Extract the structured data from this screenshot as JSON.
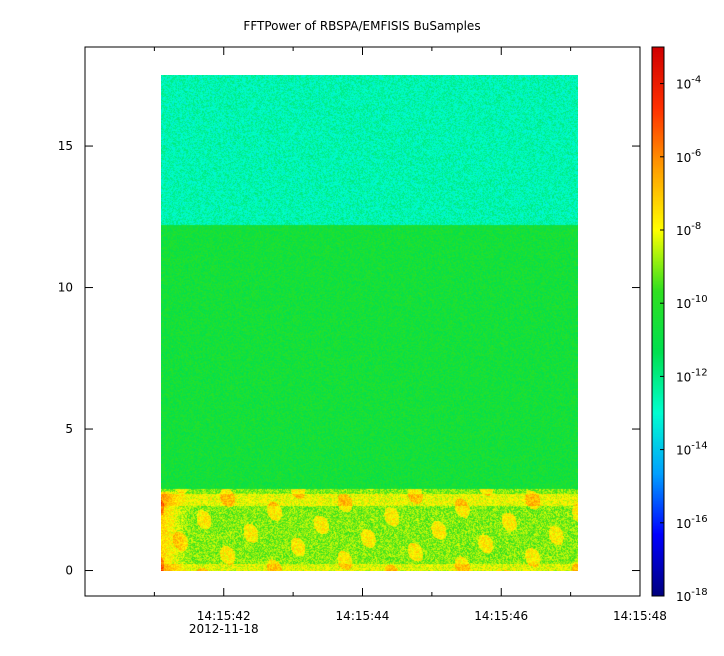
{
  "chart_data": {
    "type": "heatmap",
    "title": "FFTPower of RBSPA/EMFISIS  BuSamples",
    "xlabel": "",
    "ylabel": "",
    "x_ticks": [
      {
        "label": "14:15:42",
        "sublabel": "2012-11-18",
        "t": 42
      },
      {
        "label": "14:15:44",
        "sublabel": "",
        "t": 44
      },
      {
        "label": "14:15:46",
        "sublabel": "",
        "t": 46
      },
      {
        "label": "14:15:48",
        "sublabel": "",
        "t": 48
      }
    ],
    "x_minor_ticks": [
      41,
      43,
      45,
      47
    ],
    "xlim": [
      40.0,
      48.0
    ],
    "y_ticks": [
      0,
      5,
      10,
      15
    ],
    "ylim": [
      -0.9,
      18.5
    ],
    "data_extent": {
      "t_start": 41.1,
      "t_end": 47.1,
      "y_min": 0,
      "y_max": 17.5
    },
    "colorbar": {
      "scale": "log",
      "range": [
        1e-18,
        0.001
      ],
      "ticks": [
        {
          "base": "10",
          "exp": "-4",
          "value": 0.0001
        },
        {
          "base": "10",
          "exp": "-6",
          "value": 1e-06
        },
        {
          "base": "10",
          "exp": "-8",
          "value": 1e-08
        },
        {
          "base": "10",
          "exp": "-10",
          "value": 1e-10
        },
        {
          "base": "10",
          "exp": "-12",
          "value": 1e-12
        },
        {
          "base": "10",
          "exp": "-14",
          "value": 1e-14
        },
        {
          "base": "10",
          "exp": "-16",
          "value": 1e-16
        },
        {
          "base": "10",
          "exp": "-18",
          "value": 1e-18
        }
      ],
      "colors": [
        "#00007f",
        "#0000ff",
        "#00a0ff",
        "#00ffd0",
        "#00e050",
        "#30e020",
        "#ffff00",
        "#ffa000",
        "#ff3000",
        "#d00000"
      ]
    },
    "bands": [
      {
        "y_range": [
          12.2,
          17.5
        ],
        "log_power": -12.6
      },
      {
        "y_range": [
          2.9,
          12.2
        ],
        "log_power": -10.6
      },
      {
        "y_range": [
          0,
          2.9
        ],
        "log_power": -9.0
      }
    ]
  }
}
